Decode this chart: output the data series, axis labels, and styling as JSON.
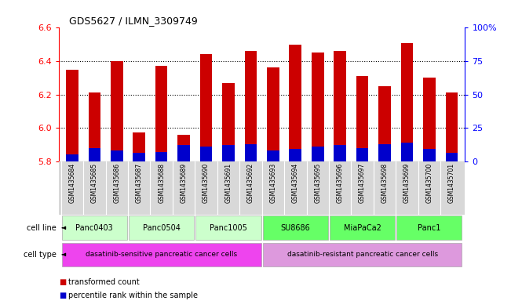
{
  "title": "GDS5627 / ILMN_3309749",
  "samples": [
    "GSM1435684",
    "GSM1435685",
    "GSM1435686",
    "GSM1435687",
    "GSM1435688",
    "GSM1435689",
    "GSM1435690",
    "GSM1435691",
    "GSM1435692",
    "GSM1435693",
    "GSM1435694",
    "GSM1435695",
    "GSM1435696",
    "GSM1435697",
    "GSM1435698",
    "GSM1435699",
    "GSM1435700",
    "GSM1435701"
  ],
  "transformed_count": [
    6.35,
    6.21,
    6.4,
    5.97,
    6.37,
    5.96,
    6.44,
    6.27,
    6.46,
    6.36,
    6.5,
    6.45,
    6.46,
    6.31,
    6.25,
    6.51,
    6.3,
    6.21
  ],
  "percentile_rank": [
    5,
    10,
    8,
    6,
    7,
    12,
    11,
    12,
    13,
    8,
    9,
    11,
    12,
    10,
    13,
    14,
    9,
    6
  ],
  "y_min": 5.8,
  "y_max": 6.6,
  "y_ticks": [
    5.8,
    6.0,
    6.2,
    6.4,
    6.6
  ],
  "right_y_ticks": [
    0,
    25,
    50,
    75,
    100
  ],
  "right_y_labels": [
    "0",
    "25",
    "50",
    "75",
    "100%"
  ],
  "bar_color_red": "#cc0000",
  "bar_color_blue": "#0000cc",
  "cell_lines": [
    {
      "name": "Panc0403",
      "start": 0,
      "end": 3,
      "color": "#ccffcc"
    },
    {
      "name": "Panc0504",
      "start": 3,
      "end": 6,
      "color": "#ccffcc"
    },
    {
      "name": "Panc1005",
      "start": 6,
      "end": 9,
      "color": "#ccffcc"
    },
    {
      "name": "SU8686",
      "start": 9,
      "end": 12,
      "color": "#66ff66"
    },
    {
      "name": "MiaPaCa2",
      "start": 12,
      "end": 15,
      "color": "#66ff66"
    },
    {
      "name": "Panc1",
      "start": 15,
      "end": 18,
      "color": "#66ff66"
    }
  ],
  "cell_types": [
    {
      "name": "dasatinib-sensitive pancreatic cancer cells",
      "start": 0,
      "end": 9,
      "color": "#ee44ee"
    },
    {
      "name": "dasatinib-resistant pancreatic cancer cells",
      "start": 9,
      "end": 18,
      "color": "#dd99dd"
    }
  ],
  "legend_red": "transformed count",
  "legend_blue": "percentile rank within the sample"
}
